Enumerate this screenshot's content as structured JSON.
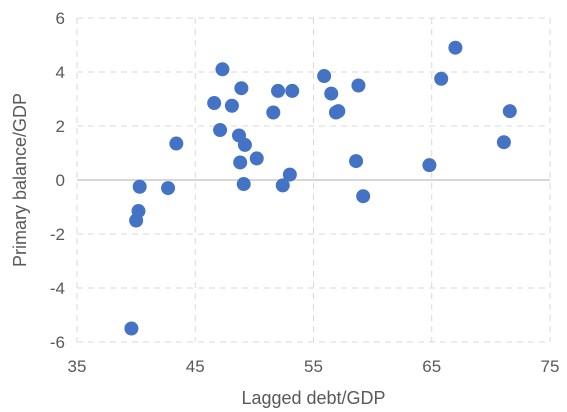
{
  "chart_data": {
    "type": "scatter",
    "title": "",
    "xlabel": "Lagged debt/GDP",
    "ylabel": "Primary balance/GDP",
    "xlim": [
      35,
      75
    ],
    "ylim": [
      -6,
      6
    ],
    "x_ticks": [
      "35",
      "45",
      "55",
      "65",
      "75"
    ],
    "y_ticks": [
      "-6",
      "-4",
      "-2",
      "0",
      "2",
      "4",
      "6"
    ],
    "grid": true,
    "legend": "none",
    "marker_color": "#4472C4",
    "series": [
      {
        "points": [
          [
            39.6,
            -5.5
          ],
          [
            40.0,
            -1.5
          ],
          [
            40.2,
            -1.15
          ],
          [
            40.3,
            -0.25
          ],
          [
            42.7,
            -0.3
          ],
          [
            43.4,
            1.35
          ],
          [
            46.6,
            2.85
          ],
          [
            47.1,
            1.85
          ],
          [
            47.3,
            4.1
          ],
          [
            48.1,
            2.75
          ],
          [
            48.7,
            1.65
          ],
          [
            48.8,
            0.65
          ],
          [
            48.9,
            3.4
          ],
          [
            49.1,
            -0.15
          ],
          [
            49.2,
            1.3
          ],
          [
            50.2,
            0.8
          ],
          [
            51.6,
            2.5
          ],
          [
            52.0,
            3.3
          ],
          [
            52.4,
            -0.2
          ],
          [
            53.0,
            0.2
          ],
          [
            53.2,
            3.3
          ],
          [
            55.9,
            3.85
          ],
          [
            56.5,
            3.2
          ],
          [
            56.9,
            2.5
          ],
          [
            57.1,
            2.55
          ],
          [
            58.6,
            0.7
          ],
          [
            58.8,
            3.5
          ],
          [
            59.2,
            -0.6
          ],
          [
            64.8,
            0.55
          ],
          [
            65.8,
            3.75
          ],
          [
            67.0,
            4.9
          ],
          [
            71.1,
            1.4
          ],
          [
            71.6,
            2.55
          ]
        ]
      }
    ]
  }
}
